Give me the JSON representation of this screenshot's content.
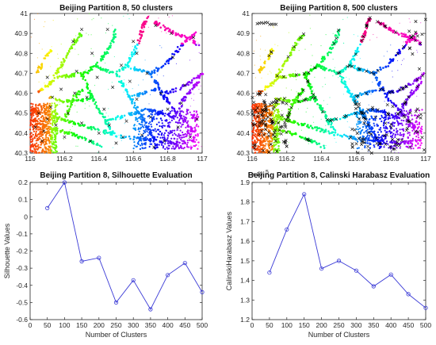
{
  "chart_data": [
    {
      "type": "scatter",
      "title": "Beijing Partition 8, 50 clusters",
      "xlim": [
        116,
        117
      ],
      "ylim": [
        40.3,
        41
      ],
      "x_ticks": [
        "116",
        "116.2",
        "116.4",
        "116.6",
        "116.8",
        "117"
      ],
      "y_ticks": [
        "40.3",
        "40.4",
        "40.5",
        "40.6",
        "40.7",
        "40.8",
        "40.9",
        "41"
      ],
      "x_tick_values": [
        116,
        116.2,
        116.4,
        116.6,
        116.8,
        117
      ],
      "y_tick_values": [
        40.3,
        40.4,
        40.5,
        40.6,
        40.7,
        40.8,
        40.9,
        41
      ],
      "centroid_marker": "x",
      "centroids": [
        [
          116.03,
          40.43
        ],
        [
          116.05,
          40.5
        ],
        [
          116.08,
          40.41
        ],
        [
          116.1,
          40.47
        ],
        [
          116.12,
          40.53
        ],
        [
          116.15,
          40.44
        ],
        [
          116.18,
          40.62
        ],
        [
          116.2,
          40.38
        ],
        [
          116.22,
          40.5
        ],
        [
          116.25,
          40.86
        ],
        [
          116.27,
          40.71
        ],
        [
          116.3,
          40.45
        ],
        [
          116.33,
          40.58
        ],
        [
          116.36,
          40.8
        ],
        [
          116.39,
          40.68
        ],
        [
          116.4,
          40.4
        ],
        [
          116.43,
          40.52
        ],
        [
          116.45,
          40.92
        ],
        [
          116.48,
          40.63
        ],
        [
          116.5,
          40.35
        ],
        [
          116.53,
          40.74
        ],
        [
          116.56,
          40.46
        ],
        [
          116.6,
          40.86
        ],
        [
          116.62,
          40.57
        ],
        [
          116.65,
          40.39
        ],
        [
          116.68,
          40.7
        ],
        [
          116.7,
          40.48
        ],
        [
          116.73,
          40.94
        ],
        [
          116.76,
          40.6
        ],
        [
          116.78,
          40.36
        ],
        [
          116.8,
          40.52
        ],
        [
          116.83,
          40.78
        ],
        [
          116.86,
          40.43
        ],
        [
          116.9,
          40.64
        ],
        [
          116.93,
          40.38
        ],
        [
          116.95,
          40.88
        ],
        [
          116.07,
          40.36
        ],
        [
          116.13,
          40.58
        ],
        [
          116.35,
          40.36
        ],
        [
          116.58,
          40.66
        ],
        [
          116.72,
          40.33
        ],
        [
          116.88,
          40.55
        ],
        [
          116.26,
          40.6
        ],
        [
          116.46,
          40.44
        ],
        [
          116.62,
          40.8
        ],
        [
          116.97,
          40.47
        ],
        [
          116.1,
          40.68
        ],
        [
          116.3,
          40.92
        ],
        [
          116.82,
          40.9
        ],
        [
          116.54,
          40.38
        ]
      ],
      "grid": false,
      "legend": "none"
    },
    {
      "type": "scatter",
      "title": "Beijing Partition 8, 500 clusters",
      "xlim": [
        116,
        117
      ],
      "ylim": [
        40.3,
        41
      ],
      "x_ticks": [
        "116",
        "116.2",
        "116.4",
        "116.6",
        "116.8",
        "117"
      ],
      "y_ticks": [
        "40.3",
        "40.4",
        "40.5",
        "40.6",
        "40.7",
        "40.8",
        "40.9",
        "41"
      ],
      "x_tick_values": [
        116,
        116.2,
        116.4,
        116.6,
        116.8,
        117
      ],
      "y_tick_values": [
        40.3,
        40.4,
        40.5,
        40.6,
        40.7,
        40.8,
        40.9,
        41
      ],
      "centroid_marker": "x",
      "grid": false,
      "legend": "none"
    },
    {
      "type": "line",
      "title": "Beijing Partition 8, Silhouette Evaluation",
      "xlabel": "Number of Clusters",
      "ylabel": "Silhouette Values",
      "x": [
        50,
        100,
        150,
        200,
        250,
        300,
        350,
        400,
        450,
        500
      ],
      "values": [
        0.05,
        0.2,
        -0.26,
        -0.24,
        -0.5,
        -0.37,
        -0.54,
        -0.34,
        -0.27,
        -0.44
      ],
      "xlim": [
        0,
        500
      ],
      "ylim": [
        -0.6,
        0.2
      ],
      "x_ticks": [
        "0",
        "50",
        "100",
        "150",
        "200",
        "250",
        "300",
        "350",
        "400",
        "450",
        "500"
      ],
      "y_ticks": [
        "-0.6",
        "-0.5",
        "-0.4",
        "-0.3",
        "-0.2",
        "-0.1",
        "0",
        "0.1",
        "0.2"
      ],
      "x_tick_values": [
        0,
        50,
        100,
        150,
        200,
        250,
        300,
        350,
        400,
        450,
        500
      ],
      "y_tick_values": [
        -0.6,
        -0.5,
        -0.4,
        -0.3,
        -0.2,
        -0.1,
        0,
        0.1,
        0.2
      ],
      "color": "#3a3ad6",
      "marker": "o",
      "grid": false,
      "legend": "none"
    },
    {
      "type": "line",
      "title": "Beijing Partition 8, Calinski Harabasz Evaluation",
      "xlabel": "Number of Clusters",
      "ylabel": "CalinskiHarabasz Values",
      "y_exponent": "x 10",
      "y_exponent_power": "5",
      "x": [
        50,
        100,
        150,
        200,
        250,
        300,
        350,
        400,
        450,
        500
      ],
      "values": [
        1.44,
        1.66,
        1.84,
        1.46,
        1.5,
        1.45,
        1.37,
        1.43,
        1.33,
        1.26
      ],
      "xlim": [
        0,
        500
      ],
      "ylim": [
        1.2,
        1.9
      ],
      "x_ticks": [
        "0",
        "50",
        "100",
        "150",
        "200",
        "250",
        "300",
        "350",
        "400",
        "450",
        "500"
      ],
      "y_ticks": [
        "1.2",
        "1.3",
        "1.4",
        "1.5",
        "1.6",
        "1.7",
        "1.8",
        "1.9"
      ],
      "x_tick_values": [
        0,
        50,
        100,
        150,
        200,
        250,
        300,
        350,
        400,
        450,
        500
      ],
      "y_tick_values": [
        1.2,
        1.3,
        1.4,
        1.5,
        1.6,
        1.7,
        1.8,
        1.9
      ],
      "color": "#3a3ad6",
      "marker": "o",
      "grid": false,
      "legend": "none"
    }
  ]
}
